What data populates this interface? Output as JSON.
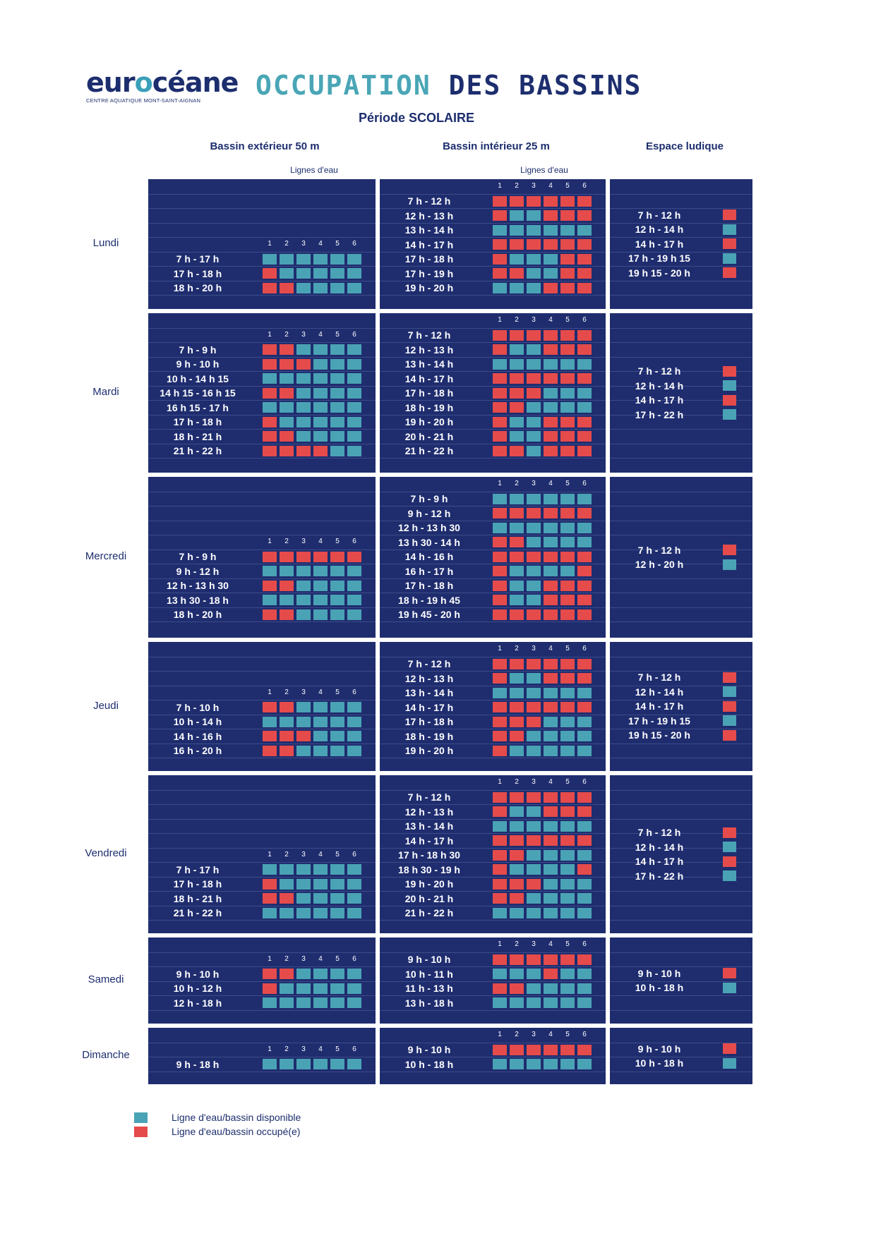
{
  "header": {
    "logo_text_1": "eur",
    "logo_text_o": "o",
    "logo_text_2": "céane",
    "logo_subtitle": "CENTRE AQUATIQUE MONT-SAINT-AIGNAN",
    "title_part1": "OCCUPATION",
    "title_part2": "DES BASSINS",
    "periode": "Période SCOLAIRE"
  },
  "columns": {
    "outdoor": "Bassin extérieur 50 m",
    "indoor": "Bassin intérieur 25 m",
    "ludique": "Espace ludique",
    "lignes_label": "Lignes d'eau"
  },
  "lane_numbers": [
    "1",
    "2",
    "3",
    "4",
    "5",
    "6"
  ],
  "colors": {
    "available": "#4aa3b5",
    "occupied": "#e54b4b",
    "block": "#1f2d6f"
  },
  "days": [
    {
      "name": "Lundi",
      "outdoor": [
        {
          "t": "7 h - 17 h",
          "l": "aaaaaa"
        },
        {
          "t": "17 h - 18 h",
          "l": "oaaaaa"
        },
        {
          "t": "18 h - 20 h",
          "l": "ooaaaa"
        }
      ],
      "indoor": [
        {
          "t": "7 h - 12 h",
          "l": "oooooo"
        },
        {
          "t": "12 h - 13 h",
          "l": "oaaooo"
        },
        {
          "t": "13 h - 14 h",
          "l": "aaaaaa"
        },
        {
          "t": "14 h - 17 h",
          "l": "oooooo"
        },
        {
          "t": "17 h - 18 h",
          "l": "oaaaoo"
        },
        {
          "t": "17 h - 19 h",
          "l": "ooaaoo"
        },
        {
          "t": "19 h - 20 h",
          "l": "aaaooo"
        }
      ],
      "ludique": [
        {
          "t": "7 h - 12 h",
          "l": "o"
        },
        {
          "t": "12 h - 14 h",
          "l": "a"
        },
        {
          "t": "14 h - 17 h",
          "l": "o"
        },
        {
          "t": "17 h - 19 h 15",
          "l": "a"
        },
        {
          "t": "19 h 15 - 20 h",
          "l": "o"
        }
      ]
    },
    {
      "name": "Mardi",
      "outdoor": [
        {
          "t": "7 h - 9 h",
          "l": "ooaaaa"
        },
        {
          "t": "9 h - 10 h",
          "l": "oooaaa"
        },
        {
          "t": "10 h - 14 h 15",
          "l": "aaaaaa"
        },
        {
          "t": "14 h 15 - 16 h 15",
          "l": "ooaaaa"
        },
        {
          "t": "16 h 15 - 17 h",
          "l": "aaaaaa"
        },
        {
          "t": "17 h - 18 h",
          "l": "oaaaaa"
        },
        {
          "t": "18 h - 21 h",
          "l": "ooaaaa"
        },
        {
          "t": "21 h - 22 h",
          "l": "ooooaa"
        }
      ],
      "indoor": [
        {
          "t": "7 h - 12 h",
          "l": "oooooo"
        },
        {
          "t": "12 h - 13 h",
          "l": "oaaooo"
        },
        {
          "t": "13 h - 14 h",
          "l": "aaaaaa"
        },
        {
          "t": "14 h - 17 h",
          "l": "oooooo"
        },
        {
          "t": "17 h - 18 h",
          "l": "oooaaa"
        },
        {
          "t": "18 h - 19 h",
          "l": "ooaaaa"
        },
        {
          "t": "19 h - 20 h",
          "l": "oaaooo"
        },
        {
          "t": "20 h - 21 h",
          "l": "oaaooo"
        },
        {
          "t": "21 h - 22 h",
          "l": "ooaooo"
        }
      ],
      "ludique": [
        {
          "t": "7 h - 12 h",
          "l": "o"
        },
        {
          "t": "12 h - 14 h",
          "l": "a"
        },
        {
          "t": "14 h - 17 h",
          "l": "o"
        },
        {
          "t": "17 h - 22 h",
          "l": "a"
        }
      ]
    },
    {
      "name": "Mercredi",
      "outdoor": [
        {
          "t": "7 h - 9 h",
          "l": "oooooo"
        },
        {
          "t": "9 h - 12 h",
          "l": "aaaaaa"
        },
        {
          "t": "12 h - 13 h 30",
          "l": "ooaaaa"
        },
        {
          "t": "13 h 30 - 18 h",
          "l": "aaaaaa"
        },
        {
          "t": "18 h - 20 h",
          "l": "ooaaaa"
        }
      ],
      "indoor": [
        {
          "t": "7 h - 9 h",
          "l": "aaaaaa"
        },
        {
          "t": "9 h - 12 h",
          "l": "oooooo"
        },
        {
          "t": "12 h - 13 h 30",
          "l": "aaaaaa"
        },
        {
          "t": "13 h 30 - 14 h",
          "l": "ooaaaa"
        },
        {
          "t": "14 h - 16 h",
          "l": "oooooo"
        },
        {
          "t": "16 h - 17 h",
          "l": "oaaaao"
        },
        {
          "t": "17 h - 18 h",
          "l": "oaaooo"
        },
        {
          "t": "18 h - 19 h 45",
          "l": "oaaooo"
        },
        {
          "t": "19 h 45 - 20 h",
          "l": "oooooo"
        }
      ],
      "ludique": [
        {
          "t": "7 h - 12 h",
          "l": "o"
        },
        {
          "t": "12 h - 20 h",
          "l": "a"
        }
      ]
    },
    {
      "name": "Jeudi",
      "outdoor": [
        {
          "t": "7 h - 10 h",
          "l": "ooaaaa"
        },
        {
          "t": "10 h - 14 h",
          "l": "aaaaaa"
        },
        {
          "t": "14 h - 16 h",
          "l": "oooaaa"
        },
        {
          "t": "16 h - 20 h",
          "l": "ooaaaa"
        }
      ],
      "indoor": [
        {
          "t": "7 h - 12 h",
          "l": "oooooo"
        },
        {
          "t": "12 h - 13 h",
          "l": "oaaooo"
        },
        {
          "t": "13 h - 14 h",
          "l": "aaaaaa"
        },
        {
          "t": "14 h - 17 h",
          "l": "oooooo"
        },
        {
          "t": "17 h - 18 h",
          "l": "oooaaa"
        },
        {
          "t": "18 h - 19 h",
          "l": "ooaaaa"
        },
        {
          "t": "19 h - 20 h",
          "l": "oaaaaa"
        }
      ],
      "ludique": [
        {
          "t": "7 h - 12 h",
          "l": "o"
        },
        {
          "t": "12 h - 14 h",
          "l": "a"
        },
        {
          "t": "14 h - 17 h",
          "l": "o"
        },
        {
          "t": "17 h - 19 h 15",
          "l": "a"
        },
        {
          "t": "19 h 15 - 20 h",
          "l": "o"
        }
      ]
    },
    {
      "name": "Vendredi",
      "outdoor": [
        {
          "t": "7 h - 17 h",
          "l": "aaaaaa"
        },
        {
          "t": "17 h - 18 h",
          "l": "oaaaaa"
        },
        {
          "t": "18 h - 21 h",
          "l": "ooaaaa"
        },
        {
          "t": "21 h - 22 h",
          "l": "aaaaaa"
        }
      ],
      "indoor": [
        {
          "t": "7 h - 12 h",
          "l": "oooooo"
        },
        {
          "t": "12 h - 13 h",
          "l": "oaaooo"
        },
        {
          "t": "13 h - 14 h",
          "l": "aaaaaa"
        },
        {
          "t": "14 h - 17 h",
          "l": "oooooo"
        },
        {
          "t": "17 h - 18 h 30",
          "l": "ooaaaa"
        },
        {
          "t": "18 h 30 - 19 h",
          "l": "oaaaao"
        },
        {
          "t": "19 h - 20 h",
          "l": "oooaaa"
        },
        {
          "t": "20 h - 21 h",
          "l": "ooaaaa"
        },
        {
          "t": "21 h - 22 h",
          "l": "aaaaaa"
        }
      ],
      "ludique": [
        {
          "t": "7 h - 12 h",
          "l": "o"
        },
        {
          "t": "12 h - 14 h",
          "l": "a"
        },
        {
          "t": "14 h - 17 h",
          "l": "o"
        },
        {
          "t": "17 h - 22 h",
          "l": "a"
        }
      ]
    },
    {
      "name": "Samedi",
      "outdoor": [
        {
          "t": "9 h - 10 h",
          "l": "ooaaaa"
        },
        {
          "t": "10 h - 12 h",
          "l": "oaaaaa"
        },
        {
          "t": "12 h - 18 h",
          "l": "aaaaaa"
        }
      ],
      "indoor": [
        {
          "t": "9 h - 10 h",
          "l": "oooooo"
        },
        {
          "t": "10 h - 11 h",
          "l": "aaaoaa"
        },
        {
          "t": "11 h - 13 h",
          "l": "ooaaaa"
        },
        {
          "t": "13 h - 18 h",
          "l": "aaaaaa"
        }
      ],
      "ludique": [
        {
          "t": "9 h - 10 h",
          "l": "o"
        },
        {
          "t": "10 h - 18 h",
          "l": "a"
        }
      ]
    },
    {
      "name": "Dimanche",
      "outdoor": [
        {
          "t": "9 h - 18 h",
          "l": "aaaaaa"
        }
      ],
      "indoor": [
        {
          "t": "9 h - 10 h",
          "l": "oooooo"
        },
        {
          "t": "10 h - 18 h",
          "l": "aaaaaa"
        }
      ],
      "ludique": [
        {
          "t": "9 h - 10 h",
          "l": "o"
        },
        {
          "t": "10 h - 18 h",
          "l": "a"
        }
      ]
    }
  ],
  "legend": {
    "available": "Ligne d'eau/bassin disponible",
    "occupied": "Ligne d'eau/bassin occupé(e)"
  }
}
